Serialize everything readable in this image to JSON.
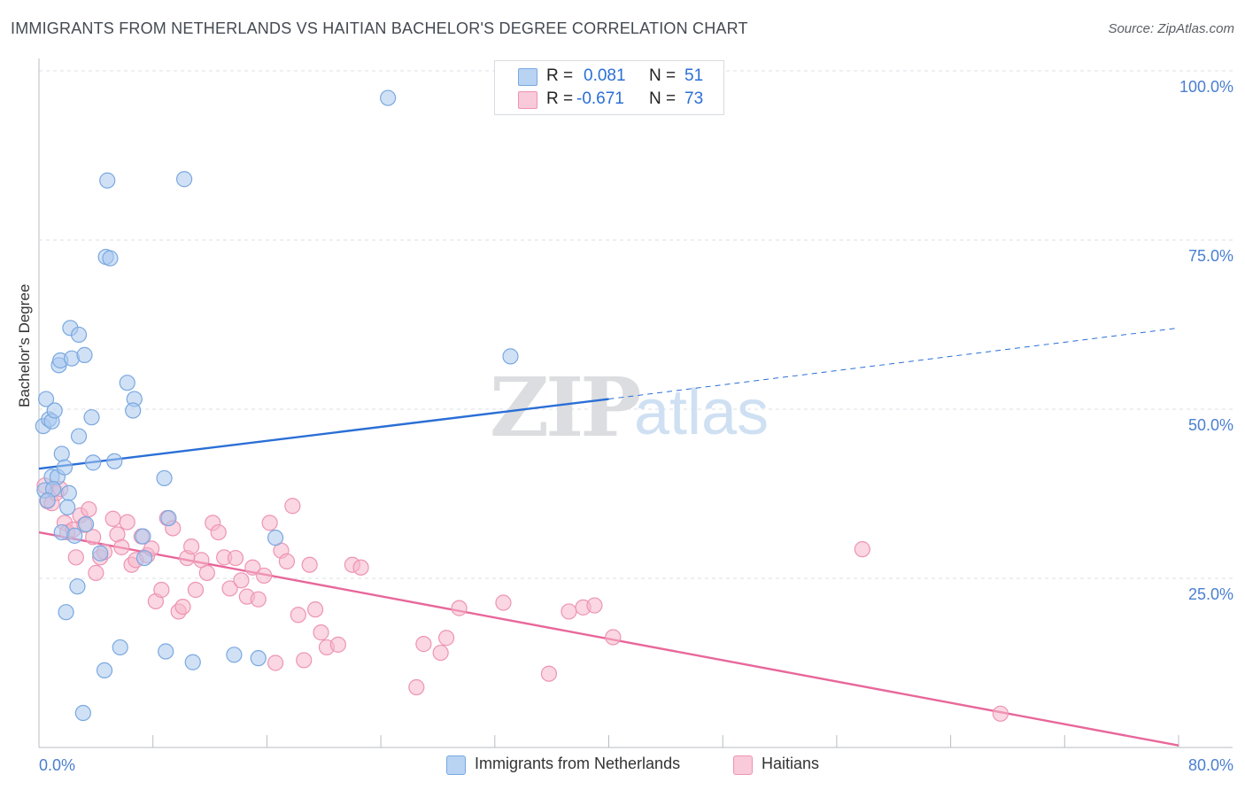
{
  "header": {
    "title": "IMMIGRANTS FROM NETHERLANDS VS HAITIAN BACHELOR'S DEGREE CORRELATION CHART",
    "source": "Source: ZipAtlas.com"
  },
  "legend": {
    "rows": [
      {
        "r_label": "R =",
        "r_value": "0.081",
        "n_label": "N =",
        "n_value": "51"
      },
      {
        "r_label": "R =",
        "r_value": "-0.671",
        "n_label": "N =",
        "n_value": "73"
      }
    ]
  },
  "bottom_legend": [
    "Immigrants from Netherlands",
    "Haitians"
  ],
  "colors": {
    "blue_fill": "#a9c8ee",
    "blue_stroke": "#7aa8e0",
    "blue_line": "#2a6fd6",
    "pink_fill": "#f6b7ca",
    "pink_stroke": "#ee94b2",
    "pink_line": "#e8679a",
    "tick_text": "#4a7fd0",
    "grid": "#dcdfe4"
  },
  "chart_data": {
    "type": "scatter",
    "title": "IMMIGRANTS FROM NETHERLANDS VS HAITIAN BACHELOR'S DEGREE CORRELATION CHART",
    "xlabel": "",
    "ylabel": "Bachelor's Degree",
    "xlim": [
      0,
      80
    ],
    "ylim": [
      0,
      100
    ],
    "x_tick_labels": [
      "0.0%",
      "80.0%"
    ],
    "y_tick_labels": [
      "25.0%",
      "50.0%",
      "75.0%",
      "100.0%"
    ],
    "y_ticks": [
      25,
      50,
      75,
      100
    ],
    "grid": true,
    "watermark": "ZIPatlas",
    "series": [
      {
        "name": "Immigrants from Netherlands",
        "color": "#a9c8ee",
        "points": [
          [
            0.3,
            47.5
          ],
          [
            0.5,
            51.5
          ],
          [
            0.7,
            48.5
          ],
          [
            0.9,
            48.2
          ],
          [
            1.1,
            49.8
          ],
          [
            0.9,
            40
          ],
          [
            1.3,
            40
          ],
          [
            1.6,
            43.4
          ],
          [
            1.8,
            41.4
          ],
          [
            1.4,
            56.5
          ],
          [
            1.5,
            57.2
          ],
          [
            2.2,
            62
          ],
          [
            2.3,
            57.5
          ],
          [
            2.8,
            61
          ],
          [
            3.2,
            58
          ],
          [
            2.8,
            46
          ],
          [
            3.7,
            48.8
          ],
          [
            3.8,
            42.1
          ],
          [
            2.1,
            37.6
          ],
          [
            1.6,
            31.8
          ],
          [
            2.5,
            31.3
          ],
          [
            3.3,
            33
          ],
          [
            4.3,
            28.7
          ],
          [
            2.7,
            23.8
          ],
          [
            1.9,
            20
          ],
          [
            4.7,
            72.5
          ],
          [
            5.0,
            72.3
          ],
          [
            4.8,
            83.8
          ],
          [
            10.2,
            84
          ],
          [
            6.2,
            53.9
          ],
          [
            6.7,
            51.5
          ],
          [
            6.6,
            49.8
          ],
          [
            5.3,
            42.3
          ],
          [
            8.8,
            39.8
          ],
          [
            9.1,
            33.9
          ],
          [
            7.3,
            31.2
          ],
          [
            7.4,
            28
          ],
          [
            5.7,
            14.8
          ],
          [
            4.6,
            11.4
          ],
          [
            3.1,
            5.1
          ],
          [
            8.9,
            14.2
          ],
          [
            10.8,
            12.6
          ],
          [
            13.7,
            13.7
          ],
          [
            15.4,
            13.2
          ],
          [
            16.6,
            31
          ],
          [
            24.5,
            96
          ],
          [
            33.1,
            57.8
          ],
          [
            0.4,
            38
          ],
          [
            1.0,
            38.2
          ],
          [
            2.0,
            35.5
          ],
          [
            0.6,
            36.5
          ]
        ]
      },
      {
        "name": "Haitians",
        "color": "#f6b7ca",
        "points": [
          [
            0.4,
            38.7
          ],
          [
            0.6,
            36.4
          ],
          [
            0.9,
            36.1
          ],
          [
            1.2,
            37.6
          ],
          [
            1.5,
            38.2
          ],
          [
            1.8,
            33.2
          ],
          [
            2.0,
            31.8
          ],
          [
            2.4,
            32.2
          ],
          [
            2.6,
            28.1
          ],
          [
            2.9,
            34.3
          ],
          [
            3.2,
            32.9
          ],
          [
            3.5,
            35.2
          ],
          [
            3.8,
            31.1
          ],
          [
            4.0,
            25.8
          ],
          [
            4.3,
            28.1
          ],
          [
            4.6,
            28.9
          ],
          [
            5.2,
            33.8
          ],
          [
            5.5,
            31.5
          ],
          [
            5.8,
            29.6
          ],
          [
            6.2,
            33.3
          ],
          [
            6.5,
            27
          ],
          [
            6.8,
            27.7
          ],
          [
            7.2,
            31.2
          ],
          [
            7.6,
            28.4
          ],
          [
            7.9,
            29.4
          ],
          [
            8.2,
            21.6
          ],
          [
            8.6,
            23.3
          ],
          [
            9.0,
            33.9
          ],
          [
            9.4,
            32.4
          ],
          [
            9.8,
            20.1
          ],
          [
            10.1,
            20.8
          ],
          [
            10.4,
            28
          ],
          [
            10.7,
            29.7
          ],
          [
            11.0,
            23.3
          ],
          [
            11.4,
            27.7
          ],
          [
            11.8,
            25.8
          ],
          [
            12.2,
            33.2
          ],
          [
            12.6,
            31.8
          ],
          [
            13.0,
            28.1
          ],
          [
            13.4,
            23.5
          ],
          [
            13.8,
            28
          ],
          [
            14.2,
            24.7
          ],
          [
            14.6,
            22.3
          ],
          [
            15.0,
            26.6
          ],
          [
            15.4,
            21.9
          ],
          [
            15.8,
            25.4
          ],
          [
            16.2,
            33.2
          ],
          [
            16.6,
            12.5
          ],
          [
            17.0,
            29.1
          ],
          [
            17.4,
            27.5
          ],
          [
            17.8,
            35.7
          ],
          [
            18.2,
            19.6
          ],
          [
            18.6,
            12.9
          ],
          [
            19.0,
            27
          ],
          [
            19.4,
            20.4
          ],
          [
            19.8,
            17
          ],
          [
            20.2,
            14.8
          ],
          [
            21.0,
            15.2
          ],
          [
            22.0,
            27
          ],
          [
            22.6,
            26.6
          ],
          [
            26.5,
            8.9
          ],
          [
            27.0,
            15.3
          ],
          [
            28.2,
            14
          ],
          [
            28.6,
            16.2
          ],
          [
            29.5,
            20.6
          ],
          [
            32.6,
            21.4
          ],
          [
            35.8,
            10.9
          ],
          [
            37.2,
            20.1
          ],
          [
            38.2,
            20.7
          ],
          [
            39.0,
            21
          ],
          [
            40.3,
            16.3
          ],
          [
            57.8,
            29.3
          ],
          [
            67.5,
            5
          ]
        ]
      }
    ],
    "trendlines": [
      {
        "series": "Immigrants from Netherlands",
        "x_solid": [
          0,
          40
        ],
        "y_solid": [
          41.2,
          51.5
        ],
        "x_dashed": [
          40,
          80
        ],
        "y_dashed": [
          51.5,
          62
        ]
      },
      {
        "series": "Haitians",
        "x": [
          0,
          80
        ],
        "y": [
          31.8,
          0.3
        ]
      }
    ]
  }
}
